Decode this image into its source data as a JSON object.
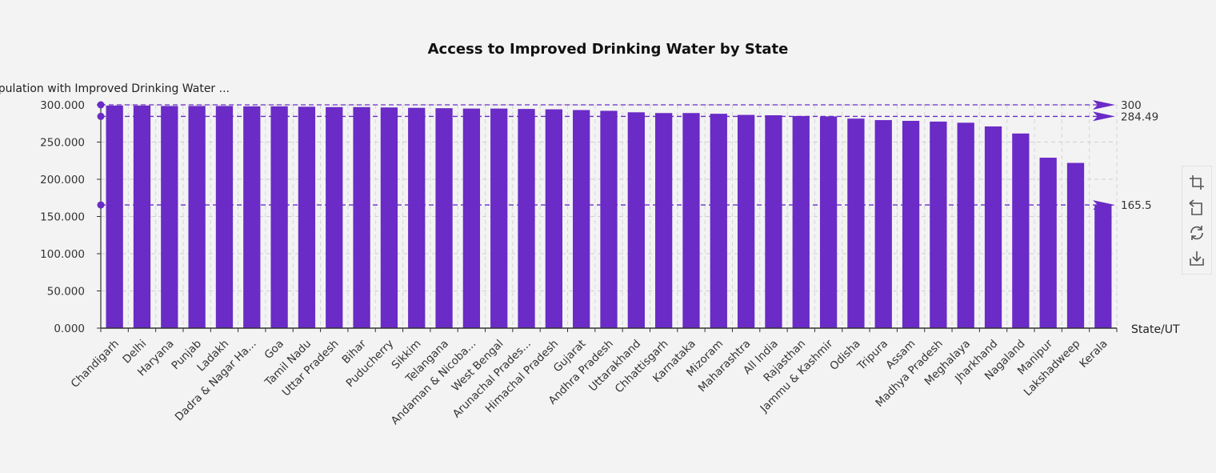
{
  "chart_data": {
    "type": "bar",
    "title": "Access to Improved Drinking Water by State",
    "xlabel": "State/UT",
    "ylabel": "pulation with Improved Drinking Water ...",
    "ylim": [
      0,
      300
    ],
    "y_ticks": [
      "0.000",
      "50.000",
      "100.000",
      "150.000",
      "200.000",
      "250.000",
      "300.000"
    ],
    "grid": true,
    "bar_color": "#6a2bc7",
    "categories": [
      "Chandigarh",
      "Delhi",
      "Haryana",
      "Punjab",
      "Ladakh",
      "Dadra & Nagar Ha...",
      "Goa",
      "Tamil Nadu",
      "Uttar Pradesh",
      "Bihar",
      "Puducherry",
      "Sikkim",
      "Telangana",
      "Andaman & Nicoba...",
      "West Bengal",
      "Arunachal Prades...",
      "Himachal Pradesh",
      "Gujarat",
      "Andhra Pradesh",
      "Uttarakhand",
      "Chhattisgarh",
      "Karnataka",
      "Mizoram",
      "Maharashtra",
      "All India",
      "Rajasthan",
      "Jammu & Kashmir",
      "Odisha",
      "Tripura",
      "Assam",
      "Madhya Pradesh",
      "Meghalaya",
      "Jharkhand",
      "Nagaland",
      "Manipur",
      "Lakshadweep",
      "Kerala"
    ],
    "values": [
      299,
      299,
      298.5,
      298.5,
      298.5,
      298,
      298,
      297.5,
      297,
      297,
      296.5,
      296,
      295.5,
      295,
      295,
      294.5,
      294,
      293,
      292,
      290,
      289,
      289,
      288,
      286.5,
      286,
      285,
      284.5,
      281.5,
      279.5,
      278.5,
      277.5,
      276,
      271,
      261.5,
      229,
      222,
      165.5
    ],
    "mark_lines": [
      {
        "value": 300,
        "label": "300"
      },
      {
        "value": 284.49,
        "label": "284.49"
      },
      {
        "value": 165.5,
        "label": "165.5"
      }
    ]
  },
  "toolbox": {
    "icons": [
      "zoom-icon",
      "zoom-reset-icon",
      "restore-icon",
      "download-icon"
    ]
  }
}
